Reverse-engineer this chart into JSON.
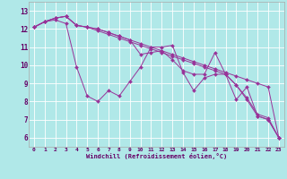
{
  "xlabel": "Windchill (Refroidissement éolien,°C)",
  "bg_color": "#b0e8e8",
  "line_color": "#993399",
  "grid_color": "#ffffff",
  "x_ticks": [
    0,
    1,
    2,
    3,
    4,
    5,
    6,
    7,
    8,
    9,
    10,
    11,
    12,
    13,
    14,
    15,
    16,
    17,
    18,
    19,
    20,
    21,
    22,
    23
  ],
  "y_ticks": [
    6,
    7,
    8,
    9,
    10,
    11,
    12,
    13
  ],
  "xlim": [
    -0.5,
    23.5
  ],
  "ylim": [
    5.5,
    13.5
  ],
  "series": [
    [
      12.1,
      12.4,
      12.5,
      12.3,
      9.9,
      8.3,
      8.0,
      8.6,
      8.3,
      9.1,
      9.9,
      11.0,
      11.0,
      11.1,
      9.6,
      8.6,
      9.3,
      9.5,
      9.5,
      8.1,
      8.8,
      7.2,
      7.0,
      6.0
    ],
    [
      12.1,
      12.4,
      12.6,
      12.7,
      12.2,
      12.1,
      12.0,
      11.8,
      11.6,
      11.4,
      11.2,
      11.0,
      10.8,
      10.6,
      10.4,
      10.2,
      10.0,
      9.8,
      9.6,
      9.4,
      9.2,
      9.0,
      8.8,
      6.0
    ],
    [
      12.1,
      12.4,
      12.6,
      12.7,
      12.2,
      12.1,
      12.0,
      11.8,
      11.6,
      11.4,
      10.6,
      10.7,
      10.8,
      10.3,
      9.7,
      9.5,
      9.5,
      10.7,
      9.5,
      8.9,
      8.1,
      7.2,
      7.0,
      6.0
    ],
    [
      12.1,
      12.4,
      12.6,
      12.7,
      12.2,
      12.1,
      11.9,
      11.7,
      11.5,
      11.3,
      11.1,
      10.9,
      10.7,
      10.5,
      10.3,
      10.1,
      9.9,
      9.7,
      9.5,
      8.9,
      8.2,
      7.3,
      7.1,
      6.0
    ]
  ]
}
